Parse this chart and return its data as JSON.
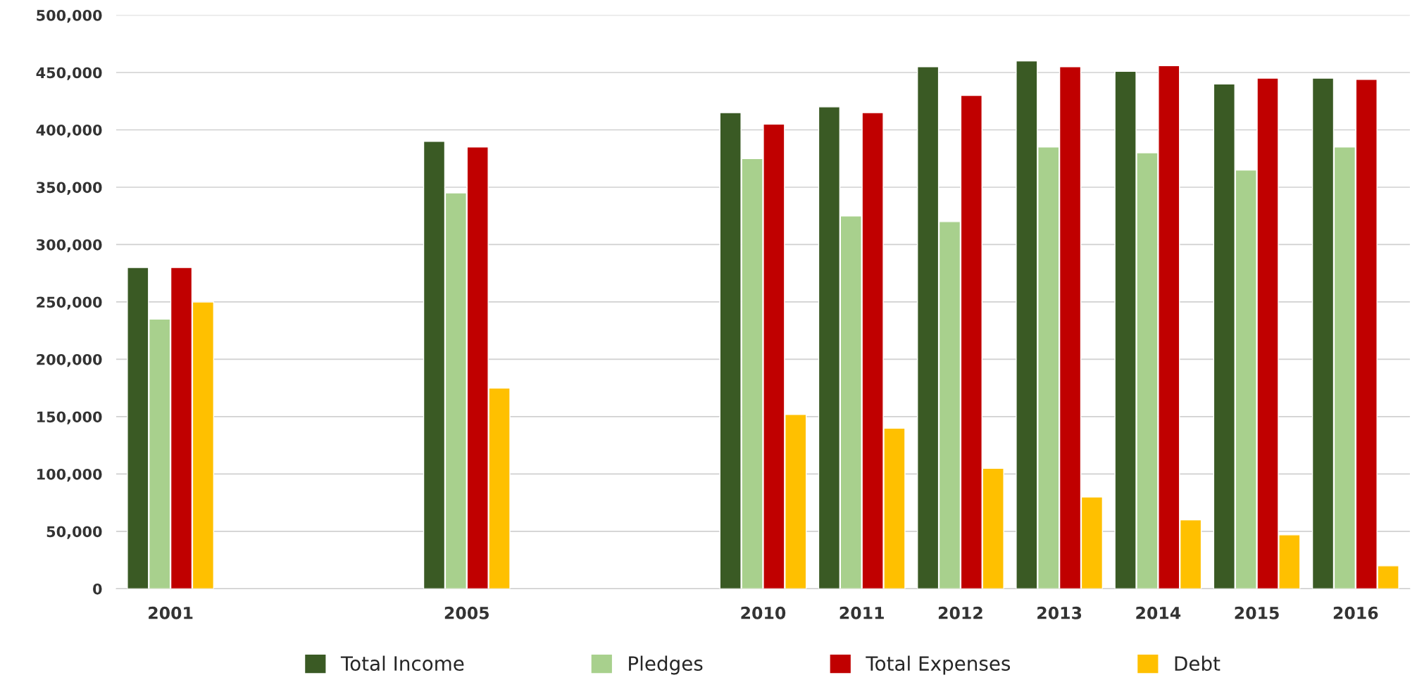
{
  "chart_data": {
    "type": "bar",
    "categories": [
      "2001",
      null,
      null,
      "2005",
      null,
      null,
      "2010",
      "2011",
      "2012",
      "2013",
      "2014",
      "2015",
      "2016"
    ],
    "series": [
      {
        "name": "Total Income",
        "color": "#3a5a24",
        "values": [
          280000,
          null,
          null,
          390000,
          null,
          null,
          415000,
          420000,
          455000,
          460000,
          451000,
          440000,
          445000
        ]
      },
      {
        "name": "Pledges",
        "color": "#a8d08d",
        "values": [
          235000,
          null,
          null,
          345000,
          null,
          null,
          375000,
          325000,
          320000,
          385000,
          380000,
          365000,
          385000
        ]
      },
      {
        "name": "Total Expenses",
        "color": "#c00000",
        "values": [
          280000,
          null,
          null,
          385000,
          null,
          null,
          405000,
          415000,
          430000,
          455000,
          456000,
          445000,
          444000
        ]
      },
      {
        "name": "Debt",
        "color": "#ffc000",
        "values": [
          250000,
          null,
          null,
          175000,
          null,
          null,
          152000,
          140000,
          105000,
          80000,
          60000,
          47000,
          20000
        ]
      }
    ],
    "ylim": [
      0,
      500000
    ],
    "yticks": [
      0,
      {
        "value": 50000,
        "label": "50,000"
      },
      {
        "value": 100000,
        "label": "100,000"
      },
      {
        "value": 150000,
        "label": "150,000"
      },
      {
        "value": 200000,
        "label": "200,000"
      },
      {
        "value": 250000,
        "label": "250,000"
      },
      {
        "value": 300000,
        "label": "300,000"
      },
      {
        "value": 350000,
        "label": "350,000"
      },
      {
        "value": 400000,
        "label": "400,000"
      },
      {
        "value": 450000,
        "label": "450,000"
      },
      {
        "value": 500000,
        "label": "500,000"
      }
    ],
    "grid": "y",
    "legend": "bottom"
  }
}
